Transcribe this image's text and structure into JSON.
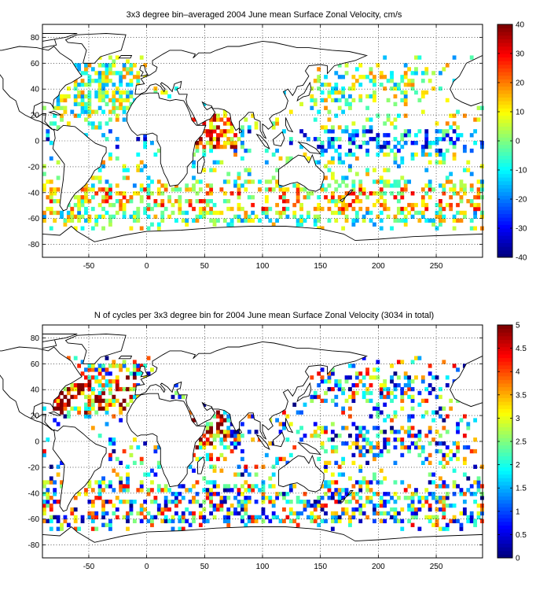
{
  "chart_data": [
    {
      "type": "heatmap",
      "title": "3x3 degree bin–averaged 2004 June mean Surface Zonal Velocity, cm/s",
      "xlim": [
        -90,
        290
      ],
      "ylim": [
        -90,
        90
      ],
      "xticks": [
        -50,
        0,
        50,
        100,
        150,
        200,
        250
      ],
      "yticks": [
        80,
        60,
        40,
        20,
        0,
        -20,
        -40,
        -60,
        -80
      ],
      "grid": true,
      "colormap": "jet",
      "colorbar": {
        "min": -40,
        "max": 40,
        "ticks": [
          40,
          30,
          20,
          10,
          0,
          -10,
          -20,
          -30,
          -40
        ]
      },
      "bin_size_deg": 3,
      "seed": 7,
      "summary": "sparse colored 3x3 degree bins over the world oceans; strong positive (eastward, red) values in the Indian Ocean near 0-20N and the Southern Ocean near -40; negative (westward, blue) values along the equatorial Pacific and Atlantic"
    },
    {
      "type": "heatmap",
      "title": "N of cycles per 3x3 degree bin for 2004 June mean Surface Zonal Velocity (3034 in total)",
      "xlim": [
        -90,
        290
      ],
      "ylim": [
        -90,
        90
      ],
      "xticks": [
        -50,
        0,
        50,
        100,
        150,
        200,
        250
      ],
      "yticks": [
        80,
        60,
        40,
        20,
        0,
        -20,
        -40,
        -60,
        -80
      ],
      "grid": true,
      "colormap": "jet",
      "colorbar": {
        "min": 0,
        "max": 5,
        "ticks": [
          5,
          4.5,
          4,
          3.5,
          3,
          2.5,
          2,
          1.5,
          1,
          0.5,
          0
        ]
      },
      "bin_size_deg": 3,
      "seed": 19,
      "summary": "counts of profiling cycles per bin; many bins with 5 or more (dark red) in the North Atlantic and Arabian Sea, mostly 1-3 (cyan/yellow) elsewhere"
    }
  ]
}
